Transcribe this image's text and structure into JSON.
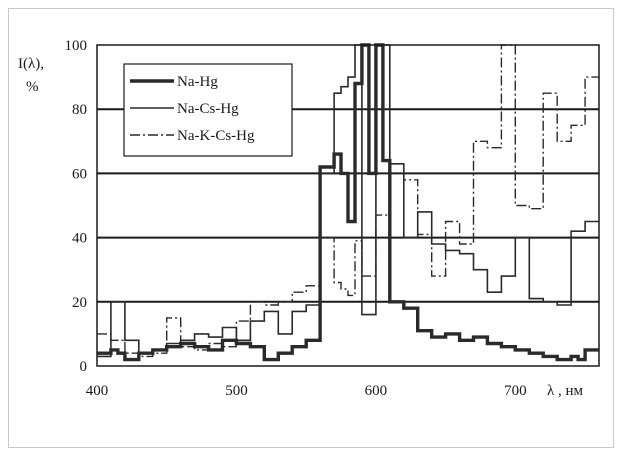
{
  "chart_data": {
    "type": "line",
    "title": "",
    "ylabel": "I(λ),",
    "yunit": "%",
    "xlabel": "λ , нм",
    "xlim": [
      400,
      760
    ],
    "ylim": [
      0,
      100
    ],
    "xticks": [
      "400",
      "500",
      "600",
      "700"
    ],
    "xtick_values": [
      400,
      500,
      600,
      700
    ],
    "yticks": [
      "0",
      "20",
      "40",
      "60",
      "80",
      "100"
    ],
    "ytick_values": [
      0,
      20,
      40,
      60,
      80,
      100
    ],
    "grid": "horizontal",
    "legend_position": "top-left",
    "series": [
      {
        "name": "Na-Hg",
        "style": "solid-thick",
        "color": "#2a2a2a",
        "x": [
          400,
          410,
          410,
          415,
          415,
          420,
          420,
          430,
          430,
          440,
          440,
          450,
          450,
          460,
          460,
          470,
          470,
          480,
          480,
          490,
          490,
          500,
          500,
          510,
          510,
          520,
          520,
          530,
          530,
          540,
          540,
          550,
          550,
          560,
          560,
          570,
          570,
          575,
          575,
          580,
          580,
          585,
          585,
          590,
          590,
          595,
          595,
          600,
          600,
          605,
          605,
          610,
          610,
          620,
          620,
          630,
          630,
          640,
          640,
          650,
          650,
          660,
          660,
          670,
          670,
          680,
          680,
          690,
          690,
          700,
          700,
          710,
          710,
          720,
          720,
          730,
          730,
          740,
          740,
          745,
          745,
          750,
          750,
          760
        ],
        "y": [
          4,
          4,
          5,
          5,
          4,
          4,
          2,
          2,
          4,
          4,
          5,
          5,
          6,
          6,
          7,
          7,
          6,
          6,
          5,
          5,
          8,
          8,
          7,
          7,
          6,
          6,
          2,
          2,
          4,
          4,
          6,
          6,
          8,
          8,
          62,
          62,
          66,
          66,
          60,
          60,
          45,
          45,
          88,
          88,
          100,
          100,
          60,
          60,
          100,
          100,
          64,
          64,
          20,
          20,
          18,
          18,
          11,
          11,
          9,
          9,
          10,
          10,
          8,
          8,
          9,
          9,
          7,
          7,
          6,
          6,
          5,
          5,
          4,
          4,
          3,
          3,
          2,
          2,
          3,
          3,
          2,
          2,
          5,
          5
        ]
      },
      {
        "name": "Na-Cs-Hg",
        "style": "solid-thin",
        "color": "#2a2a2a",
        "x": [
          400,
          410,
          410,
          420,
          420,
          430,
          430,
          440,
          440,
          450,
          450,
          460,
          460,
          470,
          470,
          480,
          480,
          490,
          490,
          500,
          500,
          510,
          510,
          520,
          520,
          530,
          530,
          540,
          540,
          550,
          550,
          560,
          560,
          570,
          570,
          575,
          575,
          580,
          580,
          585,
          585,
          590,
          590,
          600,
          600,
          610,
          610,
          620,
          620,
          630,
          630,
          640,
          640,
          650,
          650,
          660,
          660,
          670,
          670,
          680,
          680,
          690,
          690,
          700,
          700,
          710,
          710,
          720,
          720,
          730,
          730,
          740,
          740,
          750,
          750,
          760
        ],
        "y": [
          3,
          3,
          20,
          20,
          8,
          8,
          4,
          4,
          5,
          5,
          7,
          7,
          8,
          8,
          10,
          10,
          9,
          9,
          12,
          12,
          8,
          8,
          14,
          14,
          17,
          17,
          10,
          10,
          17,
          17,
          19,
          19,
          60,
          60,
          85,
          85,
          87,
          87,
          90,
          90,
          100,
          100,
          16,
          16,
          100,
          100,
          63,
          63,
          40,
          40,
          48,
          48,
          38,
          38,
          36,
          36,
          35,
          35,
          30,
          30,
          23,
          23,
          28,
          28,
          40,
          40,
          21,
          21,
          20,
          20,
          19,
          19,
          42,
          42,
          45,
          45
        ]
      },
      {
        "name": "Na-K-Cs-Hg",
        "style": "dash-dot",
        "color": "#2a2a2a",
        "x": [
          400,
          410,
          410,
          420,
          420,
          430,
          430,
          440,
          440,
          450,
          450,
          460,
          460,
          470,
          470,
          480,
          480,
          490,
          490,
          500,
          500,
          510,
          510,
          520,
          520,
          530,
          530,
          540,
          540,
          550,
          550,
          560,
          560,
          570,
          570,
          575,
          575,
          580,
          580,
          585,
          585,
          590,
          590,
          600,
          600,
          610,
          610,
          620,
          620,
          630,
          630,
          640,
          640,
          650,
          650,
          660,
          660,
          670,
          670,
          680,
          680,
          690,
          690,
          700,
          700,
          710,
          710,
          720,
          720,
          730,
          730,
          740,
          740,
          750,
          750,
          760
        ],
        "y": [
          10,
          10,
          8,
          8,
          4,
          4,
          3,
          3,
          4,
          4,
          15,
          15,
          6,
          6,
          5,
          5,
          7,
          7,
          6,
          6,
          14,
          14,
          20,
          20,
          19,
          19,
          20,
          20,
          23,
          23,
          25,
          25,
          40,
          40,
          26,
          26,
          24,
          24,
          22,
          22,
          39,
          39,
          28,
          28,
          47,
          47,
          60,
          60,
          58,
          58,
          41,
          41,
          28,
          28,
          45,
          45,
          38,
          38,
          70,
          70,
          68,
          68,
          100,
          100,
          50,
          50,
          49,
          49,
          85,
          85,
          70,
          70,
          75,
          75,
          90,
          90
        ]
      }
    ]
  }
}
